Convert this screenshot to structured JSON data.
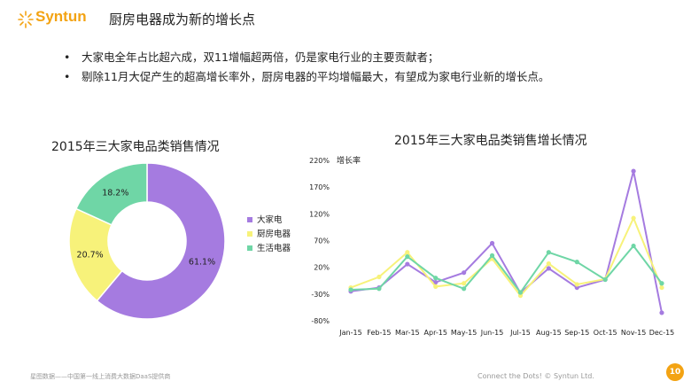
{
  "header": {
    "logo_text": "Syntun",
    "title": "厨房电器成为新的增长点"
  },
  "bullets": [
    "大家电全年占比超六成，双11增幅超两倍，仍是家电行业的主要贡献者；",
    "剔除11月大促产生的超高增长率外，厨房电器的平均增幅最大，有望成为家电行业新的增长点。"
  ],
  "footer": {
    "left_text": "星图数据——中国第一线上消费大数据DaaS提供商",
    "right_text": "Connect the Dots! © Syntun Ltd.",
    "page_number": "10"
  },
  "colors": {
    "brand": "#f3a313",
    "purple": "#a57be0",
    "yellow": "#f7f27a",
    "teal": "#6fd6a6"
  },
  "chart_data": [
    {
      "type": "pie",
      "subtype": "donut",
      "title": "2015年三大家电品类销售情况",
      "categories": [
        "大家电",
        "厨房电器",
        "生活电器"
      ],
      "values": [
        61.1,
        20.7,
        18.2
      ],
      "labels": [
        "61.1%",
        "20.7%",
        "18.2%"
      ],
      "colors": [
        "#a57be0",
        "#f7f27a",
        "#6fd6a6"
      ],
      "legend": "right"
    },
    {
      "type": "line",
      "title": "2015年三大家电品类销售增长情况",
      "ylabel": "增长率",
      "categories": [
        "Jan-15",
        "Feb-15",
        "Mar-15",
        "Apr-15",
        "May-15",
        "Jun-15",
        "Jul-15",
        "Aug-15",
        "Sep-15",
        "Oct-15",
        "Nov-15",
        "Dec-15"
      ],
      "yticks": [
        "220%",
        "170%",
        "120%",
        "70%",
        "20%",
        "-30%",
        "-80%"
      ],
      "ylim": [
        -80,
        220
      ],
      "grid": false,
      "series": [
        {
          "color": "#a57be0",
          "values": [
            -25,
            -18,
            26,
            -8,
            10,
            65,
            -28,
            18,
            -18,
            -3,
            200,
            -65
          ]
        },
        {
          "color": "#f7f27a",
          "values": [
            -18,
            2,
            48,
            -16,
            -10,
            36,
            -33,
            27,
            -12,
            -2,
            112,
            -18
          ]
        },
        {
          "color": "#6fd6a6",
          "values": [
            -22,
            -20,
            40,
            0,
            -20,
            42,
            -27,
            48,
            30,
            -3,
            60,
            -10
          ]
        }
      ]
    }
  ]
}
